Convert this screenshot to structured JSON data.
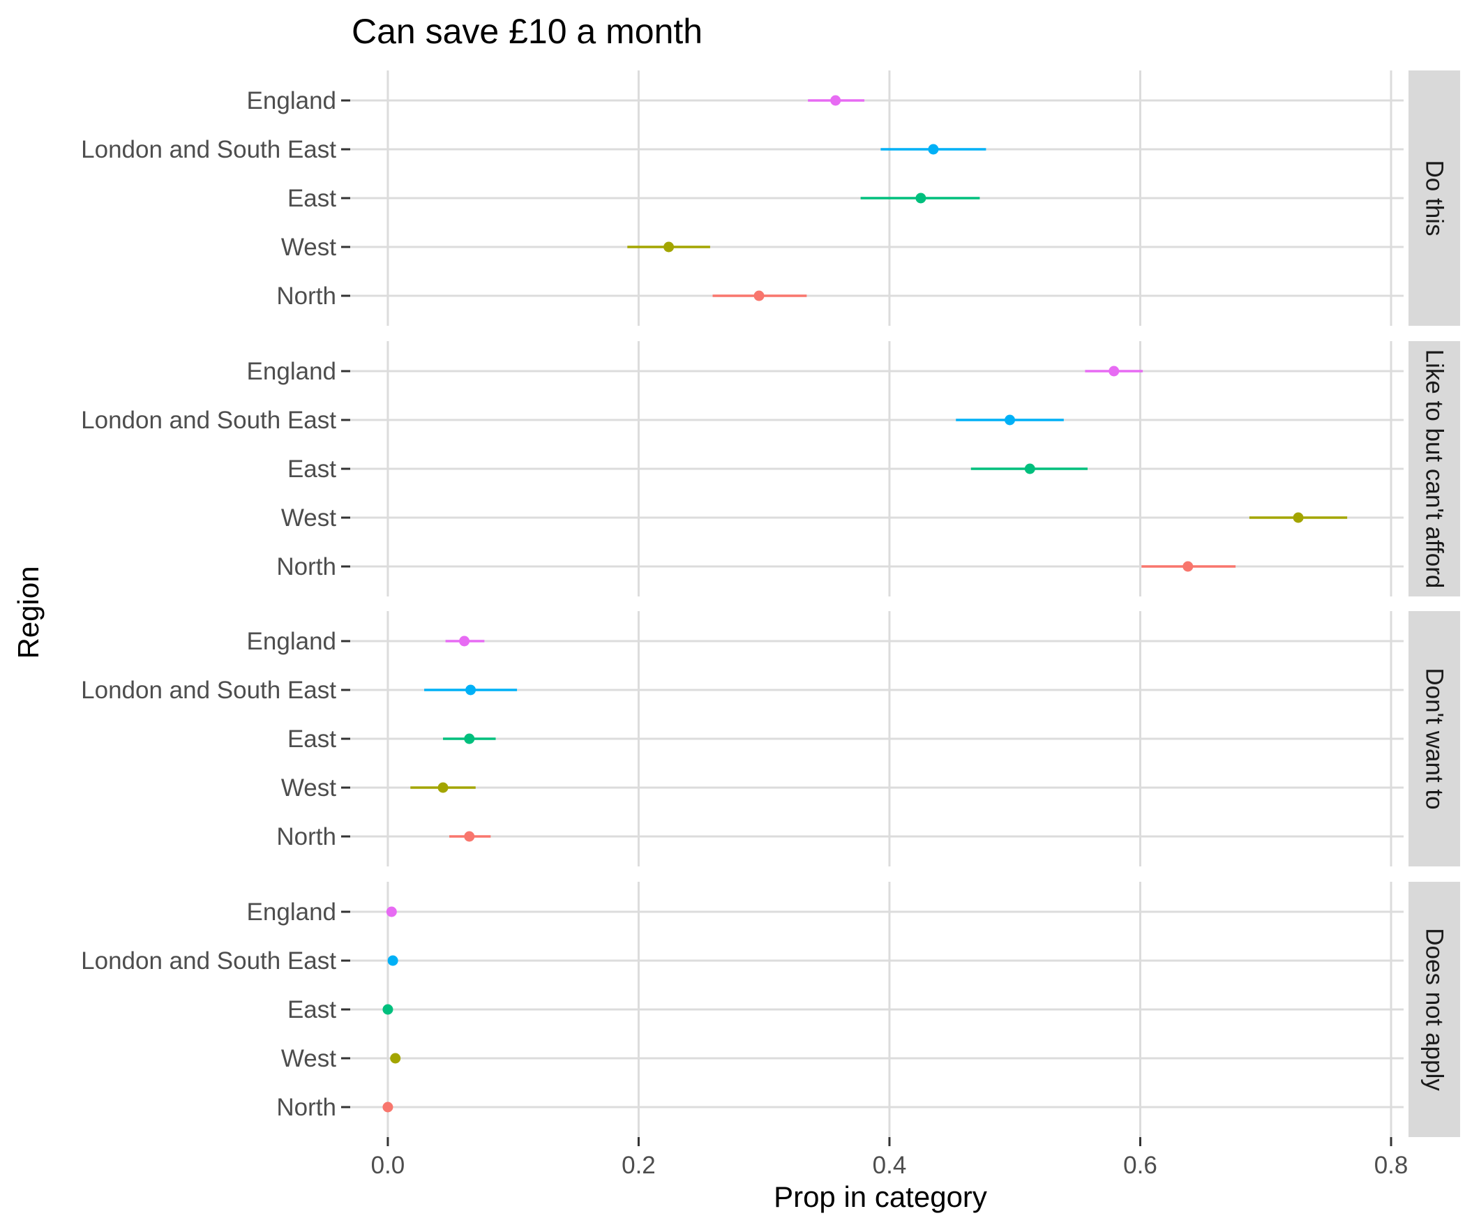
{
  "chart_data": {
    "type": "dot-range",
    "title": "Can save £10 a month",
    "xlabel": "Prop in category",
    "ylabel": "Region",
    "xlim": [
      -0.03,
      0.81
    ],
    "x_ticks": [
      0.0,
      0.2,
      0.4,
      0.6,
      0.8
    ],
    "x_tick_labels": [
      "0.0",
      "0.2",
      "0.4",
      "0.6",
      "0.8"
    ],
    "grid": true,
    "categories": [
      "England",
      "London and South East",
      "East",
      "West",
      "North"
    ],
    "colors": {
      "England": "#e76bf3",
      "London and South East": "#00b0f6",
      "East": "#00bf7d",
      "West": "#a3a500",
      "North": "#f8766d"
    },
    "panels": [
      {
        "label": "Do this",
        "points": [
          {
            "region": "England",
            "value": 0.357,
            "low": 0.335,
            "high": 0.38
          },
          {
            "region": "London and South East",
            "value": 0.435,
            "low": 0.393,
            "high": 0.477
          },
          {
            "region": "East",
            "value": 0.425,
            "low": 0.377,
            "high": 0.472
          },
          {
            "region": "West",
            "value": 0.224,
            "low": 0.191,
            "high": 0.257
          },
          {
            "region": "North",
            "value": 0.296,
            "low": 0.259,
            "high": 0.334
          }
        ]
      },
      {
        "label": "Like to but can't afford",
        "points": [
          {
            "region": "England",
            "value": 0.579,
            "low": 0.556,
            "high": 0.602
          },
          {
            "region": "London and South East",
            "value": 0.496,
            "low": 0.453,
            "high": 0.539
          },
          {
            "region": "East",
            "value": 0.512,
            "low": 0.465,
            "high": 0.558
          },
          {
            "region": "West",
            "value": 0.726,
            "low": 0.687,
            "high": 0.765
          },
          {
            "region": "North",
            "value": 0.638,
            "low": 0.601,
            "high": 0.676
          }
        ]
      },
      {
        "label": "Don't want to",
        "points": [
          {
            "region": "England",
            "value": 0.061,
            "low": 0.046,
            "high": 0.077
          },
          {
            "region": "London and South East",
            "value": 0.066,
            "low": 0.029,
            "high": 0.103
          },
          {
            "region": "East",
            "value": 0.065,
            "low": 0.044,
            "high": 0.086
          },
          {
            "region": "West",
            "value": 0.044,
            "low": 0.018,
            "high": 0.07
          },
          {
            "region": "North",
            "value": 0.065,
            "low": 0.049,
            "high": 0.082
          }
        ]
      },
      {
        "label": "Does not apply",
        "points": [
          {
            "region": "England",
            "value": 0.003,
            "low": 0.001,
            "high": 0.005
          },
          {
            "region": "London and South East",
            "value": 0.004,
            "low": 0.002,
            "high": 0.006
          },
          {
            "region": "East",
            "value": 0.0,
            "low": -0.001,
            "high": 0.001
          },
          {
            "region": "West",
            "value": 0.006,
            "low": 0.002,
            "high": 0.01
          },
          {
            "region": "North",
            "value": 0.0,
            "low": -0.001,
            "high": 0.001
          }
        ]
      }
    ]
  }
}
